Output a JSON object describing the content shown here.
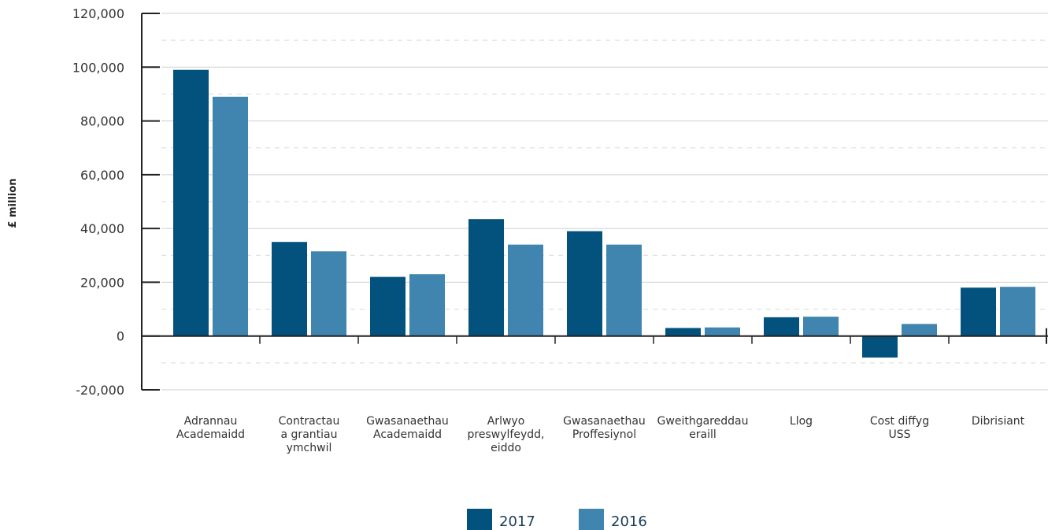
{
  "chart_data": {
    "type": "bar",
    "title": "",
    "xlabel": "",
    "ylabel": "£ million",
    "ylim": [
      -20000,
      120000
    ],
    "yticks": [
      {
        "value": 120000,
        "label": "120,000"
      },
      {
        "value": 100000,
        "label": "100,000"
      },
      {
        "value": 80000,
        "label": "80,000"
      },
      {
        "value": 60000,
        "label": "60,000"
      },
      {
        "value": 40000,
        "label": "40,000"
      },
      {
        "value": 20000,
        "label": "20,000"
      },
      {
        "value": 0,
        "label": "0"
      },
      {
        "value": -20000,
        "label": "-20,000"
      }
    ],
    "categories": [
      [
        "Adrannau",
        "Academaidd"
      ],
      [
        "Contractau",
        "a grantiau",
        "ymchwil"
      ],
      [
        "Gwasanaethau",
        "Academaidd"
      ],
      [
        "Arlwyo",
        "preswylfeydd,",
        "eiddo"
      ],
      [
        "Gwasanaethau",
        "Proffesiynol"
      ],
      [
        "Gweithgareddau",
        "eraill"
      ],
      [
        "Llog"
      ],
      [
        "Cost diffyg",
        "USS"
      ],
      [
        "Dibrisiant"
      ]
    ],
    "series": [
      {
        "name": "2017",
        "color": "#03527d",
        "values": [
          99000,
          35000,
          22000,
          43500,
          39000,
          3000,
          7000,
          -8000,
          18000
        ]
      },
      {
        "name": "2016",
        "color": "#3f85af",
        "values": [
          89000,
          31500,
          23000,
          34000,
          34000,
          3200,
          7200,
          4500,
          18300
        ]
      }
    ],
    "grid": true,
    "legend_position": "bottom-center"
  }
}
